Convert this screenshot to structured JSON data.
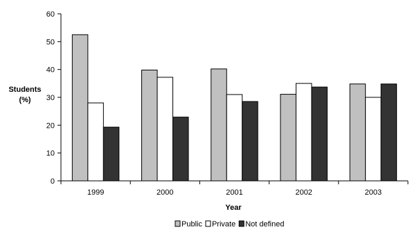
{
  "chart_data": {
    "type": "bar",
    "categories": [
      "1999",
      "2000",
      "2001",
      "2002",
      "2003"
    ],
    "series": [
      {
        "name": "Public",
        "values": [
          52.5,
          39.8,
          40.2,
          31.1,
          34.8
        ],
        "color": "#c0c0c0"
      },
      {
        "name": "Private",
        "values": [
          28.0,
          37.2,
          31.0,
          35.0,
          30.0
        ],
        "color": "#ffffff"
      },
      {
        "name": "Not defined",
        "values": [
          19.3,
          22.9,
          28.5,
          33.7,
          34.8
        ],
        "color": "#333333"
      }
    ],
    "xlabel": "Year",
    "ylabel": [
      "Students",
      "(%)"
    ],
    "ylim": [
      0,
      60
    ],
    "yticks": [
      0,
      10,
      20,
      30,
      40,
      50,
      60
    ],
    "grid": false,
    "legend_position": "bottom-center"
  }
}
